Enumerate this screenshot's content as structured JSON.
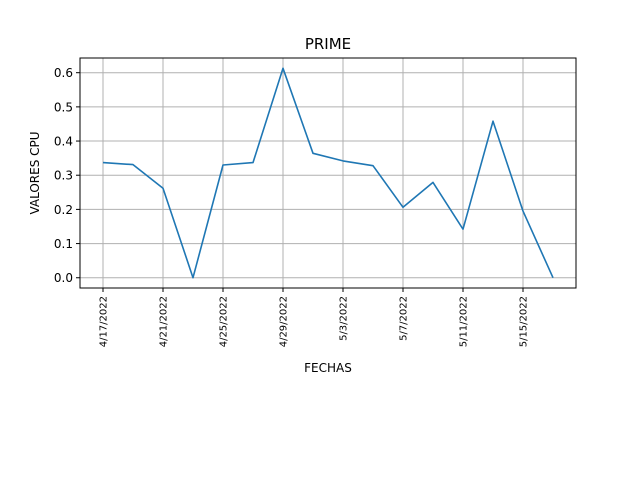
{
  "chart_data": {
    "type": "line",
    "title": "PRIME",
    "xlabel": "FECHAS",
    "ylabel": "VALORES CPU",
    "x": [
      "4/17/2022",
      "4/19/2022",
      "4/21/2022",
      "4/23/2022",
      "4/25/2022",
      "4/27/2022",
      "4/29/2022",
      "5/1/2022",
      "5/3/2022",
      "5/5/2022",
      "5/7/2022",
      "5/9/2022",
      "5/11/2022",
      "5/13/2022",
      "5/15/2022",
      "5/17/2022"
    ],
    "x_tick_labels": [
      "4/17/2022",
      "4/21/2022",
      "4/25/2022",
      "4/29/2022",
      "5/3/2022",
      "5/7/2022",
      "5/11/2022",
      "5/15/2022"
    ],
    "y_ticks": [
      "0.0",
      "0.1",
      "0.2",
      "0.3",
      "0.4",
      "0.5",
      "0.6"
    ],
    "series": [
      {
        "values": [
          0.337,
          0.331,
          0.262,
          0.0,
          0.33,
          0.337,
          0.613,
          0.364,
          0.342,
          0.328,
          0.206,
          0.279,
          0.142,
          0.458,
          0.195,
          0.0
        ]
      }
    ],
    "ylim": [
      -0.03,
      0.643
    ],
    "grid": true,
    "line_color": "#1f77b4",
    "grid_color": "#b0b0b0"
  }
}
